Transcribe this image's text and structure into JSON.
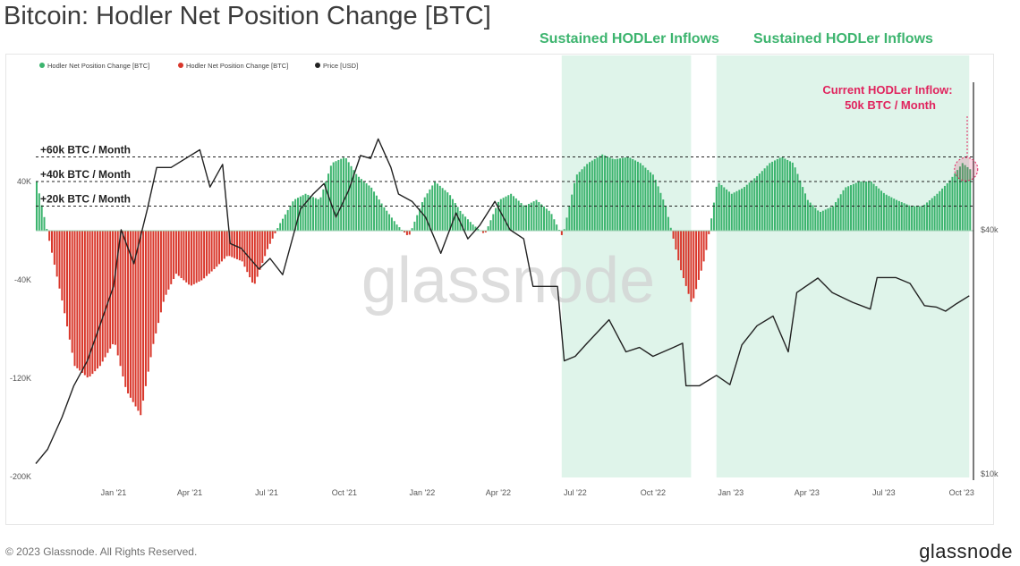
{
  "header": {
    "title": "Bitcoin: Hodler Net Position Change [BTC]",
    "banners": [
      "Sustained HODLer Inflows",
      "Sustained HODLer Inflows"
    ]
  },
  "footer": {
    "copyright": "© 2023 Glassnode. All Rights Reserved.",
    "logo": "glassnode"
  },
  "watermark": "glassnode",
  "colors": {
    "green": "#3cb46e",
    "red": "#d9372b",
    "price": "#222222",
    "shade": "#dff4ea",
    "callout": "#e0245e"
  },
  "chart_data": {
    "type": "bar",
    "title": "Bitcoin: Hodler Net Position Change [BTC]",
    "legend_position": "top-left",
    "legend": [
      {
        "label": "Hodler Net Position Change [BTC]",
        "color": "#3cb46e"
      },
      {
        "label": "Hodler Net Position Change [BTC]",
        "color": "#d9372b"
      },
      {
        "label": "Price [USD]",
        "color": "#222222"
      }
    ],
    "left_axis": {
      "ticks": [
        40000,
        -40000,
        -120000,
        -200000
      ],
      "labels": [
        "40K",
        "-40K",
        "-120K",
        "-200K"
      ],
      "ylim": [
        -200000,
        90000
      ]
    },
    "right_axis": {
      "scale": "log",
      "ticks": [
        40000,
        10000
      ],
      "labels": [
        "$40k",
        "$10k"
      ]
    },
    "x_axis": {
      "labels": [
        "Jan '21",
        "Apr '21",
        "Jul '21",
        "Oct '21",
        "Jan '22",
        "Apr '22",
        "Jul '22",
        "Oct '22",
        "Jan '23",
        "Apr '23",
        "Jul '23",
        "Oct '23"
      ],
      "dates": [
        "2021-01-01",
        "2021-04-01",
        "2021-07-01",
        "2021-10-01",
        "2022-01-01",
        "2022-04-01",
        "2022-07-01",
        "2022-10-01",
        "2023-01-01",
        "2023-04-01",
        "2023-07-01",
        "2023-10-01"
      ],
      "range": [
        "2020-10-01",
        "2023-10-15"
      ]
    },
    "reference_lines": [
      {
        "value": 60000,
        "label": "+60k BTC / Month"
      },
      {
        "value": 40000,
        "label": "+40k BTC / Month"
      },
      {
        "value": 20000,
        "label": "+20k BTC / Month"
      }
    ],
    "shaded_regions": [
      {
        "start": "2022-06-15",
        "end": "2022-11-15",
        "label": "Sustained HODLer Inflows"
      },
      {
        "start": "2022-12-15",
        "end": "2023-10-10",
        "label": "Sustained HODLer Inflows"
      }
    ],
    "annotation": {
      "lines": [
        "Current HODLer Inflow:",
        "50k BTC / Month"
      ],
      "date": "2023-10-01",
      "value": 50000
    },
    "series": [
      {
        "name": "Hodler Net Position Change [BTC]",
        "x": [
          "2020-10-01",
          "2020-10-15",
          "2020-11-01",
          "2020-11-15",
          "2020-12-01",
          "2020-12-15",
          "2021-01-01",
          "2021-01-15",
          "2021-02-01",
          "2021-02-15",
          "2021-03-01",
          "2021-03-15",
          "2021-04-01",
          "2021-04-15",
          "2021-05-01",
          "2021-05-15",
          "2021-06-01",
          "2021-06-15",
          "2021-07-01",
          "2021-07-15",
          "2021-08-01",
          "2021-08-15",
          "2021-09-01",
          "2021-09-15",
          "2021-10-01",
          "2021-10-15",
          "2021-11-01",
          "2021-11-15",
          "2021-12-01",
          "2021-12-15",
          "2022-01-01",
          "2022-01-15",
          "2022-02-01",
          "2022-02-15",
          "2022-03-01",
          "2022-03-15",
          "2022-04-01",
          "2022-04-15",
          "2022-05-01",
          "2022-05-15",
          "2022-06-01",
          "2022-06-15",
          "2022-07-01",
          "2022-07-15",
          "2022-08-01",
          "2022-08-15",
          "2022-09-01",
          "2022-09-15",
          "2022-10-01",
          "2022-10-15",
          "2022-11-01",
          "2022-11-15",
          "2022-12-01",
          "2022-12-15",
          "2023-01-01",
          "2023-01-15",
          "2023-02-01",
          "2023-02-15",
          "2023-03-01",
          "2023-03-15",
          "2023-04-01",
          "2023-04-15",
          "2023-05-01",
          "2023-05-15",
          "2023-06-01",
          "2023-06-15",
          "2023-07-01",
          "2023-07-15",
          "2023-08-01",
          "2023-08-15",
          "2023-09-01",
          "2023-09-15",
          "2023-10-01",
          "2023-10-10"
        ],
        "values": [
          40000,
          -5000,
          -60000,
          -110000,
          -120000,
          -110000,
          -90000,
          -130000,
          -150000,
          -95000,
          -55000,
          -35000,
          -45000,
          -40000,
          -30000,
          -20000,
          -25000,
          -45000,
          -15000,
          5000,
          25000,
          30000,
          25000,
          55000,
          60000,
          45000,
          35000,
          20000,
          5000,
          -5000,
          25000,
          40000,
          30000,
          15000,
          5000,
          -3000,
          25000,
          30000,
          20000,
          25000,
          15000,
          -5000,
          45000,
          55000,
          62000,
          58000,
          60000,
          55000,
          45000,
          20000,
          -30000,
          -60000,
          -20000,
          40000,
          30000,
          35000,
          45000,
          55000,
          60000,
          55000,
          25000,
          15000,
          20000,
          35000,
          40000,
          40000,
          30000,
          25000,
          20000,
          20000,
          30000,
          40000,
          55000,
          50000
        ]
      },
      {
        "name": "Price [USD]",
        "x": [
          "2020-10-01",
          "2020-10-15",
          "2020-11-01",
          "2020-11-15",
          "2020-12-01",
          "2020-12-15",
          "2021-01-01",
          "2021-01-10",
          "2021-01-25",
          "2021-02-10",
          "2021-02-21",
          "2021-03-10",
          "2021-04-13",
          "2021-04-25",
          "2021-05-10",
          "2021-05-19",
          "2021-06-01",
          "2021-06-22",
          "2021-07-05",
          "2021-07-20",
          "2021-08-10",
          "2021-08-25",
          "2021-09-07",
          "2021-09-21",
          "2021-10-06",
          "2021-10-20",
          "2021-11-01",
          "2021-11-10",
          "2021-11-25",
          "2021-12-04",
          "2021-12-20",
          "2022-01-05",
          "2022-01-23",
          "2022-02-10",
          "2022-02-24",
          "2022-03-10",
          "2022-03-28",
          "2022-04-15",
          "2022-05-01",
          "2022-05-12",
          "2022-05-25",
          "2022-06-10",
          "2022-06-18",
          "2022-07-01",
          "2022-07-15",
          "2022-08-10",
          "2022-08-30",
          "2022-09-15",
          "2022-10-01",
          "2022-10-25",
          "2022-11-05",
          "2022-11-09",
          "2022-11-25",
          "2022-12-15",
          "2022-12-31",
          "2023-01-14",
          "2023-02-01",
          "2023-02-20",
          "2023-03-10",
          "2023-03-20",
          "2023-04-14",
          "2023-05-01",
          "2023-05-25",
          "2023-06-15",
          "2023-06-23",
          "2023-07-15",
          "2023-08-01",
          "2023-08-18",
          "2023-09-01",
          "2023-09-12",
          "2023-09-25",
          "2023-10-10"
        ],
        "values": [
          10600,
          11500,
          13800,
          16500,
          19000,
          23000,
          29000,
          40000,
          33000,
          45000,
          57000,
          57000,
          63000,
          51000,
          58000,
          37000,
          36000,
          32000,
          34000,
          31000,
          45000,
          49000,
          52000,
          43000,
          50000,
          61000,
          60000,
          67000,
          57000,
          49000,
          47000,
          43000,
          35000,
          44000,
          38000,
          41000,
          47000,
          40000,
          38000,
          29000,
          29000,
          29000,
          19000,
          19500,
          21000,
          24000,
          20000,
          20500,
          19500,
          20500,
          21000,
          16500,
          16500,
          17500,
          16600,
          20800,
          23200,
          24500,
          20000,
          28000,
          30400,
          28000,
          26500,
          25500,
          30500,
          30500,
          29500,
          26000,
          25800,
          25200,
          26300,
          27500
        ]
      }
    ]
  }
}
